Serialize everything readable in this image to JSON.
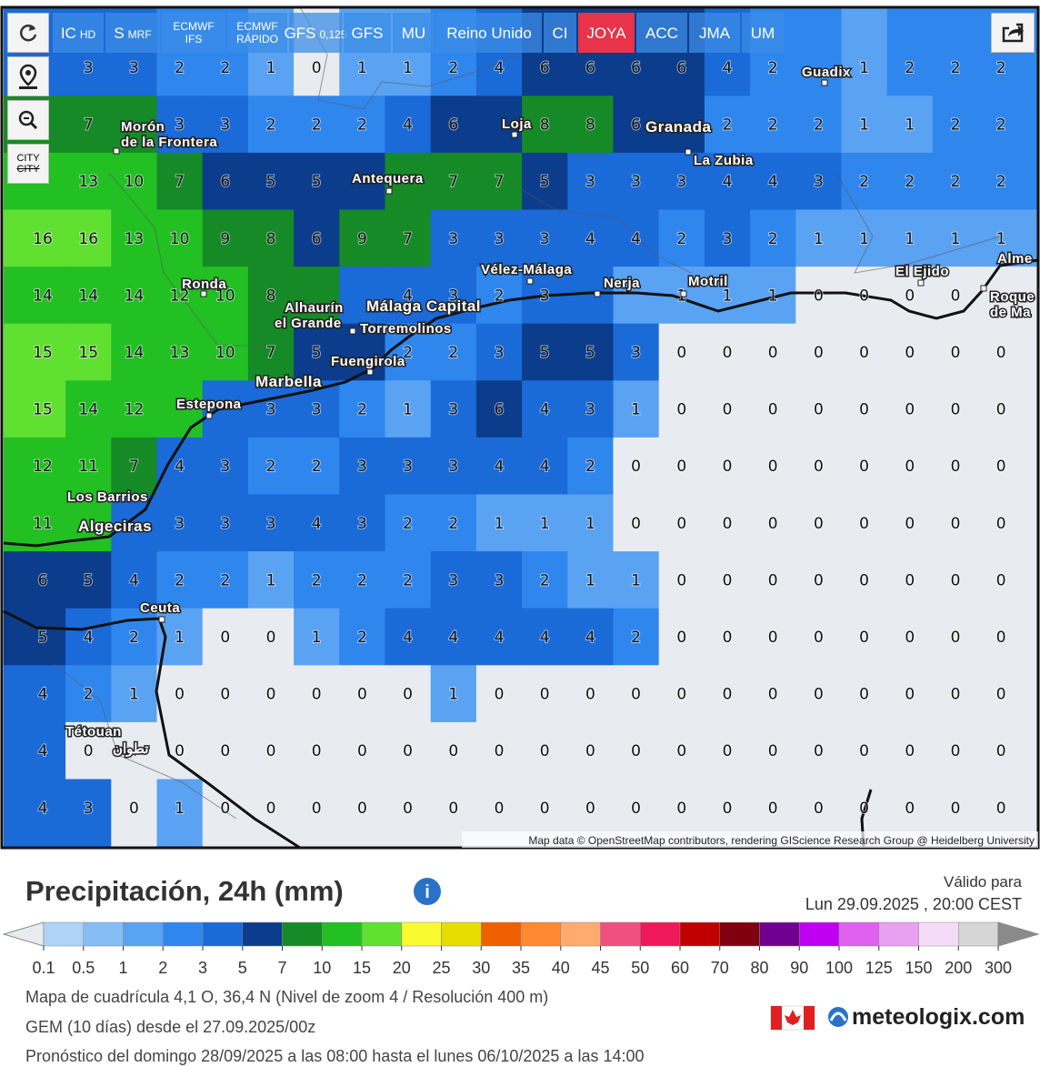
{
  "toolbar": {
    "buttons": [
      {
        "main": "IC",
        "sub": "HD"
      },
      {
        "main": "S",
        "sub": "MRF"
      },
      {
        "main": "ECMWF",
        "sub": "IFS"
      },
      {
        "main": "ECMWF",
        "sub": "RÁPIDO"
      },
      {
        "main": "GFS",
        "sub": "0,125"
      },
      {
        "main": "GFS"
      },
      {
        "main": "MU"
      },
      {
        "main": "Reino Unido"
      },
      {
        "main": "CI"
      },
      {
        "main": "JOYA"
      },
      {
        "main": "ACC"
      },
      {
        "main": "JMA"
      },
      {
        "main": "UM"
      }
    ],
    "city_button": [
      "CITY",
      "CITY"
    ]
  },
  "map": {
    "grid": [
      [
        null,
        3,
        3,
        2,
        2,
        1,
        0,
        1,
        1,
        2,
        4,
        6,
        6,
        6,
        6,
        4,
        2,
        null,
        1,
        2,
        2,
        2
      ],
      [
        null,
        7,
        null,
        3,
        3,
        2,
        2,
        2,
        4,
        6,
        null,
        8,
        8,
        6,
        null,
        2,
        2,
        2,
        1,
        1,
        2,
        2
      ],
      [
        null,
        13,
        10,
        7,
        6,
        5,
        5,
        null,
        null,
        7,
        7,
        5,
        3,
        3,
        3,
        4,
        4,
        3,
        2,
        2,
        2,
        2
      ],
      [
        16,
        16,
        13,
        10,
        9,
        8,
        6,
        9,
        7,
        3,
        3,
        3,
        4,
        4,
        2,
        3,
        2,
        1,
        1,
        1,
        1,
        1
      ],
      [
        14,
        14,
        14,
        12,
        10,
        8,
        null,
        null,
        4,
        3,
        2,
        3,
        null,
        null,
        1,
        1,
        1,
        0,
        0,
        0,
        0,
        null
      ],
      [
        15,
        15,
        14,
        13,
        10,
        7,
        5,
        null,
        2,
        2,
        3,
        5,
        5,
        3,
        0,
        0,
        0,
        0,
        0,
        0,
        0,
        0
      ],
      [
        15,
        14,
        12,
        null,
        null,
        3,
        3,
        2,
        1,
        3,
        6,
        4,
        3,
        1,
        0,
        0,
        0,
        0,
        0,
        0,
        0,
        0
      ],
      [
        12,
        11,
        7,
        4,
        3,
        2,
        2,
        3,
        3,
        3,
        4,
        4,
        2,
        0,
        0,
        0,
        0,
        0,
        0,
        0,
        0,
        0
      ],
      [
        11,
        null,
        null,
        3,
        3,
        3,
        4,
        3,
        2,
        2,
        1,
        1,
        1,
        0,
        0,
        0,
        0,
        0,
        0,
        0,
        0,
        0
      ],
      [
        6,
        5,
        4,
        2,
        2,
        1,
        2,
        2,
        2,
        3,
        3,
        2,
        1,
        1,
        0,
        0,
        0,
        0,
        0,
        0,
        0,
        0
      ],
      [
        5,
        4,
        2,
        1,
        0,
        0,
        1,
        2,
        4,
        4,
        4,
        4,
        4,
        2,
        0,
        0,
        0,
        0,
        0,
        0,
        0,
        0
      ],
      [
        4,
        2,
        1,
        0,
        0,
        0,
        0,
        0,
        0,
        1,
        0,
        0,
        0,
        0,
        0,
        0,
        0,
        0,
        0,
        0,
        0,
        0
      ],
      [
        4,
        0,
        null,
        0,
        0,
        0,
        0,
        0,
        0,
        0,
        0,
        0,
        0,
        0,
        0,
        0,
        0,
        0,
        0,
        0,
        0,
        0
      ],
      [
        4,
        3,
        0,
        1,
        0,
        0,
        0,
        0,
        0,
        0,
        0,
        0,
        0,
        0,
        0,
        0,
        0,
        0,
        0,
        0,
        0,
        0
      ]
    ],
    "places": [
      "Guadix",
      "Morón",
      "de la Frontera",
      "Loja",
      "Granada",
      "La Zubia",
      "Antequera",
      "Vélez-Málaga",
      "Nerja",
      "Motril",
      "El Ejido",
      "Alme",
      "Roque",
      "de Ma",
      "Ronda",
      "Alhaurín",
      "el Grande",
      "Málaga Capital",
      "Torremolinos",
      "Fuengirola",
      "Marbella",
      "Estepona",
      "Los Barrios",
      "Algeciras",
      "Ceuta",
      "Tétouan",
      "تطوان"
    ],
    "attribution": "Map data © OpenStreetMap contributors, rendering GIScience Research Group @ Heidelberg University"
  },
  "legend": {
    "title": "Precipitación, 24h (mm)",
    "valid_label": "Válido para",
    "valid_date": "Lun 29.09.2025 , 20:00 CEST",
    "ticks": [
      0.1,
      0.5,
      1,
      2,
      3,
      5,
      7,
      10,
      15,
      20,
      25,
      30,
      35,
      40,
      45,
      50,
      60,
      70,
      80,
      90,
      100,
      125,
      150,
      200,
      300
    ],
    "colors": [
      "#aed3f7",
      "#86bdf5",
      "#5aa2f2",
      "#2f87ee",
      "#1a6ad8",
      "#0c3c8c",
      "#168a26",
      "#22c022",
      "#60e030",
      "#fafa30",
      "#e6de00",
      "#ee6000",
      "#ff8830",
      "#ffaa70",
      "#f05080",
      "#ef1858",
      "#c00000",
      "#800010",
      "#700090",
      "#c000f0",
      "#e060f0",
      "#e8a0f0",
      "#f4dcf8",
      "#d6d6d6"
    ],
    "under_color": "#e8ecf0",
    "over_color": "#8a8a8a"
  },
  "info": [
    "Mapa de cuadrícula 4,1 O, 36,4 N (Nivel de zoom 4 / Resolución 400 m)",
    "GEM (10 días) desde el 27.09.2025/00z",
    "Pronóstico del domingo 28/09/2025 a las 08:00 hasta el lunes 06/10/2025 a las 14:00"
  ],
  "logo": "meteologix.com"
}
